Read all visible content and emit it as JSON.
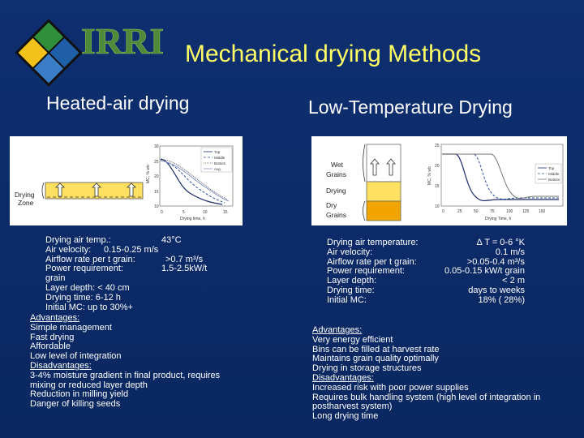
{
  "title": "Mechanical drying Methods",
  "logo": {
    "text": "IRRI"
  },
  "left": {
    "heading": "Heated-air drying",
    "figure": {
      "zone_label_line1": "Drying",
      "zone_label_line2": "Zone",
      "chart": {
        "yticks": [
          "30",
          "25",
          "20",
          "15",
          "10"
        ],
        "xticks": [
          "0",
          "5",
          "10",
          "15"
        ],
        "ylabel": "MC, % wb",
        "xlabel": "Drying time, h",
        "legend": [
          "Top",
          "Middle",
          "Bottom",
          "Avg."
        ]
      }
    },
    "specs": [
      {
        "label": "Drying air temp.:",
        "value": "43°C"
      },
      {
        "label": "Air velocity:",
        "value": "0.15-0.25 m/s"
      },
      {
        "label": "Airflow rate per t grain:",
        "value": ">0.7 m³/s"
      },
      {
        "label": "Power requirement:",
        "value": "1.5-2.5kW/t"
      }
    ],
    "specs_cont": "grain",
    "specs2": [
      "Layer depth:  < 40 cm",
      "Drying time:  6-12 h",
      "Initial MC:     up to 30%+"
    ],
    "advantages_heading": "Advantages:",
    "advantages": [
      "Simple management",
      "Fast drying",
      "Affordable",
      "Low level of integration"
    ],
    "disadvantages_heading": "Disadvantages:",
    "disadvantages": [
      "3-4% moisture gradient in final product, requires",
      "mixing or reduced layer depth",
      "Reduction in milling yield",
      "Danger of killing seeds"
    ]
  },
  "right": {
    "heading": "Low-Temperature Drying",
    "figure": {
      "wet_line1": "Wet",
      "wet_line2": "Grains",
      "drying": "Drying",
      "dry_line1": "Dry",
      "dry_line2": "Grains",
      "chart": {
        "yticks": [
          "25",
          "20",
          "15",
          "10"
        ],
        "xticks": [
          "0",
          "25",
          "50",
          "75",
          "100",
          "125",
          "150"
        ],
        "ylabel": "MC, % wb",
        "xlabel": "Drying Time, h",
        "legend": [
          "Top",
          "Middle",
          "Bottom"
        ]
      }
    },
    "specs": [
      {
        "label": "Drying air temperature:",
        "value": "Δ T = 0-6 °K"
      },
      {
        "label": "Air velocity:",
        "value": "0.1 m/s"
      },
      {
        "label": "Airflow rate per t grain:",
        "value": ">0.05-0.4 m³/s"
      },
      {
        "label": "Power requirement:",
        "value": "0.05-0.15 kW/t grain"
      },
      {
        "label": "Layer depth:",
        "value": "< 2 m"
      },
      {
        "label": "Drying time:",
        "value": "days to weeks"
      },
      {
        "label": "Initial MC:",
        "value": "18% ( 28%)"
      }
    ],
    "advantages_heading": "Advantages:",
    "advantages": [
      "Very energy efficient",
      "Bins can be filled at harvest rate",
      "Maintains grain quality optimally",
      "Drying in storage structures"
    ],
    "disadvantages_heading": "Disadvantages:",
    "disadvantages": [
      "Increased risk with poor power supplies",
      "Requires bulk handling system (high level of integration in",
      "postharvest system)",
      "Long drying time"
    ]
  }
}
